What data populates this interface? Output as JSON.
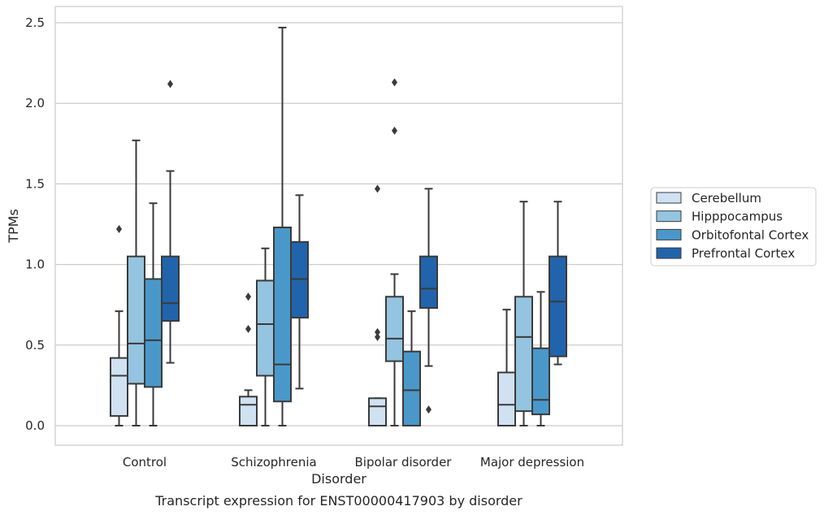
{
  "caption": "Transcript expression for ENST00000417903 by disorder",
  "chart_data": {
    "type": "box",
    "xlabel": "Disorder",
    "ylabel": "TPMs",
    "ylim": [
      -0.12,
      2.6
    ],
    "yticks": [
      0.0,
      0.5,
      1.0,
      1.5,
      2.0,
      2.5
    ],
    "ytick_labels": [
      "0.0",
      "0.5",
      "1.0",
      "1.5",
      "2.0",
      "2.5"
    ],
    "grid": "horizontal",
    "legend_position": "right",
    "categories": [
      "Control",
      "Schizophrenia",
      "Bipolar disorder",
      "Major depression"
    ],
    "series": [
      {
        "name": "Cerebellum",
        "color": "#d0e1f2",
        "boxes": [
          {
            "whislo": 0.0,
            "q1": 0.06,
            "med": 0.31,
            "q3": 0.42,
            "whishi": 0.71,
            "fliers": [
              1.22
            ]
          },
          {
            "whislo": 0.0,
            "q1": 0.0,
            "med": 0.13,
            "q3": 0.18,
            "whishi": 0.22,
            "fliers": [
              0.6,
              0.8
            ]
          },
          {
            "whislo": 0.0,
            "q1": 0.0,
            "med": 0.12,
            "q3": 0.17,
            "whishi": 0.17,
            "fliers": [
              0.55,
              0.58,
              1.47
            ]
          },
          {
            "whislo": 0.0,
            "q1": 0.0,
            "med": 0.13,
            "q3": 0.33,
            "whishi": 0.72,
            "fliers": []
          }
        ]
      },
      {
        "name": "Hipppocampus",
        "color": "#94c4df",
        "boxes": [
          {
            "whislo": 0.0,
            "q1": 0.26,
            "med": 0.51,
            "q3": 1.05,
            "whishi": 1.77,
            "fliers": []
          },
          {
            "whislo": 0.0,
            "q1": 0.31,
            "med": 0.63,
            "q3": 0.9,
            "whishi": 1.1,
            "fliers": []
          },
          {
            "whislo": 0.0,
            "q1": 0.4,
            "med": 0.54,
            "q3": 0.8,
            "whishi": 0.94,
            "fliers": [
              1.83,
              2.13
            ]
          },
          {
            "whislo": 0.0,
            "q1": 0.09,
            "med": 0.55,
            "q3": 0.8,
            "whishi": 1.39,
            "fliers": []
          }
        ]
      },
      {
        "name": "Orbitofontal Cortex",
        "color": "#4a98c9",
        "boxes": [
          {
            "whislo": 0.0,
            "q1": 0.24,
            "med": 0.53,
            "q3": 0.91,
            "whishi": 1.38,
            "fliers": []
          },
          {
            "whislo": 0.0,
            "q1": 0.15,
            "med": 0.38,
            "q3": 1.23,
            "whishi": 2.47,
            "fliers": []
          },
          {
            "whislo": 0.0,
            "q1": 0.0,
            "med": 0.22,
            "q3": 0.46,
            "whishi": 0.71,
            "fliers": []
          },
          {
            "whislo": 0.0,
            "q1": 0.07,
            "med": 0.16,
            "q3": 0.48,
            "whishi": 0.83,
            "fliers": []
          }
        ]
      },
      {
        "name": "Prefrontal Cortex",
        "color": "#2164ab",
        "boxes": [
          {
            "whislo": 0.39,
            "q1": 0.65,
            "med": 0.76,
            "q3": 1.05,
            "whishi": 1.58,
            "fliers": [
              2.12
            ]
          },
          {
            "whislo": 0.23,
            "q1": 0.67,
            "med": 0.91,
            "q3": 1.14,
            "whishi": 1.43,
            "fliers": []
          },
          {
            "whislo": 0.37,
            "q1": 0.73,
            "med": 0.85,
            "q3": 1.05,
            "whishi": 1.47,
            "fliers": [
              0.1
            ]
          },
          {
            "whislo": 0.38,
            "q1": 0.43,
            "med": 0.77,
            "q3": 1.05,
            "whishi": 1.39,
            "fliers": []
          }
        ]
      }
    ]
  }
}
